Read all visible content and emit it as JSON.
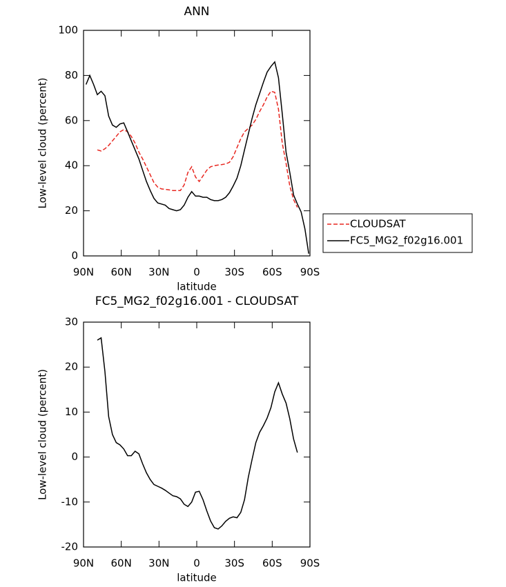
{
  "chart_data": [
    {
      "type": "line",
      "title": "ANN",
      "xlabel": "latitude",
      "ylabel": "Low-level cloud (percent)",
      "x": [
        88,
        85,
        82,
        79,
        76,
        73,
        70,
        67,
        64,
        61,
        58,
        55,
        52,
        49,
        46,
        43,
        40,
        37,
        34,
        31,
        28,
        25,
        22,
        19,
        16,
        13,
        10,
        7,
        4,
        1,
        -2,
        -5,
        -8,
        -11,
        -14,
        -17,
        -20,
        -23,
        -26,
        -29,
        -32,
        -35,
        -38,
        -41,
        -44,
        -47,
        -50,
        -53,
        -56,
        -59,
        -62,
        -65,
        -68,
        -71,
        -74,
        -77,
        -80,
        -83,
        -86,
        -89
      ],
      "series": [
        {
          "name": "CLOUDSAT",
          "color": "#e8261f",
          "style": "dashed",
          "values": [
            null,
            null,
            null,
            47,
            46.5,
            47.5,
            49,
            51,
            53,
            55,
            56,
            55,
            53,
            50,
            46,
            43,
            39.5,
            36,
            32.5,
            30.5,
            29.7,
            29.5,
            29.3,
            29,
            29,
            29,
            31.5,
            37,
            39.5,
            35,
            33,
            35.5,
            38,
            39.5,
            40,
            40.3,
            40.5,
            40.8,
            41.5,
            44,
            48,
            52,
            55,
            56.5,
            58,
            60.5,
            64,
            67,
            70.5,
            73,
            72.5,
            65,
            50,
            41,
            31,
            25,
            21.5,
            null,
            null,
            null
          ]
        },
        {
          "name": "FC5_MG2_f02g16.001",
          "color": "#000000",
          "style": "solid",
          "values": [
            76,
            80,
            76,
            71.5,
            73,
            71,
            62,
            58,
            57,
            58.5,
            59,
            55,
            51,
            47,
            43,
            38,
            33,
            29,
            25.5,
            23.5,
            23,
            22.5,
            21,
            20.5,
            20,
            20.5,
            22.5,
            26,
            28.5,
            26.5,
            26.5,
            26,
            26,
            25,
            24.5,
            24.5,
            25,
            26,
            28,
            31,
            34.5,
            40,
            47,
            54,
            61,
            67,
            72,
            77,
            81.5,
            84,
            86,
            79,
            63,
            46,
            37,
            27,
            23,
            19.5,
            12,
            1
          ]
        }
      ],
      "xlim": [
        90,
        -90
      ],
      "xticks": [
        {
          "value": 90,
          "label": "90N"
        },
        {
          "value": 60,
          "label": "60N"
        },
        {
          "value": 30,
          "label": "30N"
        },
        0,
        {
          "value": -30,
          "label": "30S"
        },
        {
          "value": -60,
          "label": "60S"
        },
        {
          "value": -90,
          "label": "90S"
        }
      ],
      "ylim": [
        0,
        100
      ],
      "yticks": [
        0,
        20,
        40,
        60,
        80,
        100
      ],
      "legend": "right"
    },
    {
      "type": "line",
      "title": "FC5_MG2_f02g16.001 - CLOUDSAT",
      "xlabel": "latitude",
      "ylabel": "Low-level cloud (percent)",
      "x": [
        88,
        85,
        82,
        79,
        76,
        73,
        70,
        67,
        64,
        61,
        58,
        55,
        52,
        49,
        46,
        43,
        40,
        37,
        34,
        31,
        28,
        25,
        22,
        19,
        16,
        13,
        10,
        7,
        4,
        1,
        -2,
        -5,
        -8,
        -11,
        -14,
        -17,
        -20,
        -23,
        -26,
        -29,
        -32,
        -35,
        -38,
        -41,
        -44,
        -47,
        -50,
        -53,
        -56,
        -59,
        -62,
        -65,
        -68,
        -71,
        -74,
        -77,
        -80,
        -83,
        -86,
        -89
      ],
      "series": [
        {
          "color": "#000000",
          "style": "solid",
          "values": [
            null,
            null,
            null,
            26,
            26.5,
            19,
            9,
            5,
            3.2,
            2.7,
            1.8,
            0.3,
            0.3,
            1.3,
            0.7,
            -1.5,
            -3.5,
            -5,
            -6.1,
            -6.5,
            -6.9,
            -7.4,
            -8,
            -8.6,
            -8.8,
            -9.3,
            -10.5,
            -11,
            -10,
            -7.8,
            -7.6,
            -9.5,
            -12,
            -14.2,
            -15.7,
            -16,
            -15.3,
            -14.3,
            -13.6,
            -13.3,
            -13.5,
            -12.3,
            -9.5,
            -4.5,
            -0.5,
            3.2,
            5.5,
            7,
            8.7,
            11,
            14.5,
            16.5,
            14,
            12,
            8.5,
            4,
            1,
            null,
            null,
            null
          ]
        }
      ],
      "xlim": [
        90,
        -90
      ],
      "xticks": [
        {
          "value": 90,
          "label": "90N"
        },
        {
          "value": 60,
          "label": "60N"
        },
        {
          "value": 30,
          "label": "30N"
        },
        0,
        {
          "value": -30,
          "label": "30S"
        },
        {
          "value": -60,
          "label": "60S"
        },
        {
          "value": -90,
          "label": "90S"
        }
      ],
      "ylim": [
        -20,
        30
      ],
      "yticks": [
        -20,
        -10,
        0,
        10,
        20,
        30
      ]
    }
  ]
}
